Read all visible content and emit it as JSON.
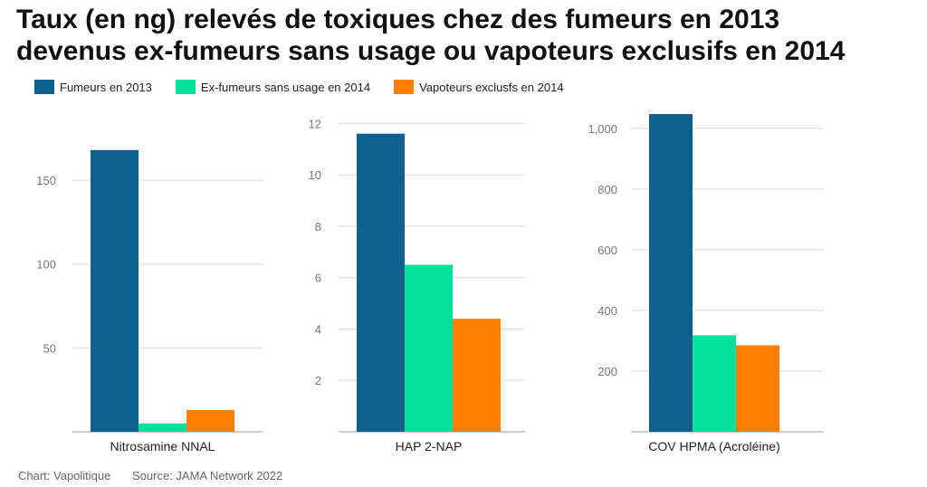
{
  "header": {
    "title_line1": "Taux (en ng) relevés de toxiques chez des fumeurs en 2013",
    "title_line2": "devenus ex-fumeurs sans usage ou vapoteurs exclusifs en 2014"
  },
  "legend": [
    {
      "label": "Fumeurs en 2013",
      "color": "#10608f"
    },
    {
      "label": "Ex-fumeurs sans usage en 2014",
      "color": "#02e19a"
    },
    {
      "label": "Vapoteurs exclusfs en 2014",
      "color": "#ff8000"
    }
  ],
  "footer": {
    "chart_credit": "Chart: Vapolitique",
    "source": "Source: JAMA Network 2022"
  },
  "chart_data": [
    {
      "type": "bar",
      "categories": [
        "Nitrosamine NNAL"
      ],
      "series": [
        {
          "name": "Fumeurs en 2013",
          "values": [
            168
          ]
        },
        {
          "name": "Ex-fumeurs sans usage en 2014",
          "values": [
            5
          ]
        },
        {
          "name": "Vapoteurs exclusfs en 2014",
          "values": [
            13
          ]
        }
      ],
      "yticks": [
        50,
        100,
        150
      ],
      "ytick_labels": [
        "50",
        "100",
        "150"
      ],
      "ylim": [
        0,
        190
      ],
      "xlabel": "Nitrosamine NNAL"
    },
    {
      "type": "bar",
      "categories": [
        "HAP 2-NAP"
      ],
      "series": [
        {
          "name": "Fumeurs en 2013",
          "values": [
            11.6
          ]
        },
        {
          "name": "Ex-fumeurs sans usage en 2014",
          "values": [
            6.5
          ]
        },
        {
          "name": "Vapoteurs exclusfs en 2014",
          "values": [
            4.4
          ]
        }
      ],
      "yticks": [
        2,
        4,
        6,
        8,
        10,
        12
      ],
      "ytick_labels": [
        "2",
        "4",
        "6",
        "8",
        "10",
        "12"
      ],
      "ylim": [
        0,
        12.4
      ],
      "xlabel": "HAP 2-NAP"
    },
    {
      "type": "bar",
      "categories": [
        "COV HPMA (Acroléine)"
      ],
      "series": [
        {
          "name": "Fumeurs en 2013",
          "values": [
            1047
          ]
        },
        {
          "name": "Ex-fumeurs sans usage en 2014",
          "values": [
            318
          ]
        },
        {
          "name": "Vapoteurs exclusfs en 2014",
          "values": [
            285
          ]
        }
      ],
      "yticks": [
        200,
        400,
        600,
        800,
        1000
      ],
      "ytick_labels": [
        "200",
        "400",
        "600",
        "800",
        "1,000"
      ],
      "ylim": [
        0,
        1050
      ],
      "xlabel": "COV HPMA (Acroléine)"
    }
  ]
}
